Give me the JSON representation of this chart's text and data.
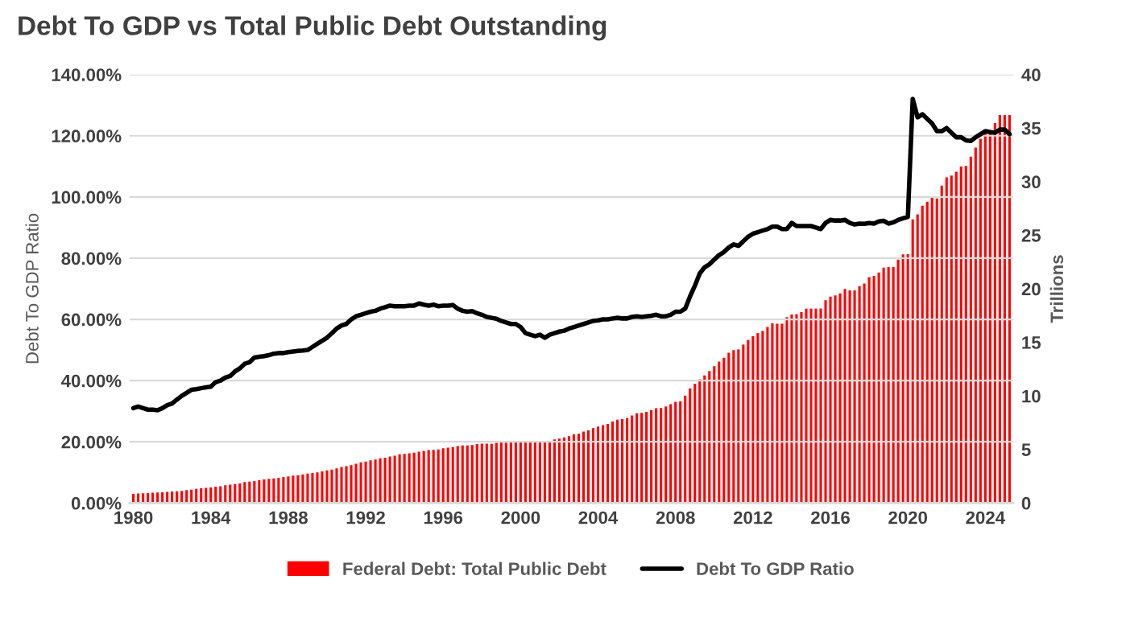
{
  "chart_data": {
    "type": "bar",
    "title": "Debt To GDP vs Total Public Debt Outstanding",
    "ylabel": "Debt To GDP Ratio",
    "y2label": "Trillions",
    "x": [
      1980,
      1980.25,
      1980.5,
      1980.75,
      1981,
      1981.25,
      1981.5,
      1981.75,
      1982,
      1982.25,
      1982.5,
      1982.75,
      1983,
      1983.25,
      1983.5,
      1983.75,
      1984,
      1984.25,
      1984.5,
      1984.75,
      1985,
      1985.25,
      1985.5,
      1985.75,
      1986,
      1986.25,
      1986.5,
      1986.75,
      1987,
      1987.25,
      1987.5,
      1987.75,
      1988,
      1988.25,
      1988.5,
      1988.75,
      1989,
      1989.25,
      1989.5,
      1989.75,
      1990,
      1990.25,
      1990.5,
      1990.75,
      1991,
      1991.25,
      1991.5,
      1991.75,
      1992,
      1992.25,
      1992.5,
      1992.75,
      1993,
      1993.25,
      1993.5,
      1993.75,
      1994,
      1994.25,
      1994.5,
      1994.75,
      1995,
      1995.25,
      1995.5,
      1995.75,
      1996,
      1996.25,
      1996.5,
      1996.75,
      1997,
      1997.25,
      1997.5,
      1997.75,
      1998,
      1998.25,
      1998.5,
      1998.75,
      1999,
      1999.25,
      1999.5,
      1999.75,
      2000,
      2000.25,
      2000.5,
      2000.75,
      2001,
      2001.25,
      2001.5,
      2001.75,
      2002,
      2002.25,
      2002.5,
      2002.75,
      2003,
      2003.25,
      2003.5,
      2003.75,
      2004,
      2004.25,
      2004.5,
      2004.75,
      2005,
      2005.25,
      2005.5,
      2005.75,
      2006,
      2006.25,
      2006.5,
      2006.75,
      2007,
      2007.25,
      2007.5,
      2007.75,
      2008,
      2008.25,
      2008.5,
      2008.75,
      2009,
      2009.25,
      2009.5,
      2009.75,
      2010,
      2010.25,
      2010.5,
      2010.75,
      2011,
      2011.25,
      2011.5,
      2011.75,
      2012,
      2012.25,
      2012.5,
      2012.75,
      2013,
      2013.25,
      2013.5,
      2013.75,
      2014,
      2014.25,
      2014.5,
      2014.75,
      2015,
      2015.25,
      2015.5,
      2015.75,
      2016,
      2016.25,
      2016.5,
      2016.75,
      2017,
      2017.25,
      2017.5,
      2017.75,
      2018,
      2018.25,
      2018.5,
      2018.75,
      2019,
      2019.25,
      2019.5,
      2019.75,
      2020,
      2020.25,
      2020.5,
      2020.75,
      2021,
      2021.25,
      2021.5,
      2021.75,
      2022,
      2022.25,
      2022.5,
      2022.75,
      2023,
      2023.25,
      2023.5,
      2023.75,
      2024,
      2024.25,
      2024.5,
      2024.75,
      2025,
      2025.25
    ],
    "xlim": [
      1979.8,
      2025.45
    ],
    "xticks": [
      1980,
      1984,
      1988,
      1992,
      1996,
      2000,
      2004,
      2008,
      2012,
      2016,
      2020,
      2024
    ],
    "ylim": [
      0,
      140
    ],
    "yticks": [
      {
        "value": 0,
        "label": "0.00%"
      },
      {
        "value": 20,
        "label": "20.00%"
      },
      {
        "value": 40,
        "label": "40.00%"
      },
      {
        "value": 60,
        "label": "60.00%"
      },
      {
        "value": 80,
        "label": "80.00%"
      },
      {
        "value": 100,
        "label": "100.00%"
      },
      {
        "value": 120,
        "label": "120.00%"
      },
      {
        "value": 140,
        "label": "140.00%"
      }
    ],
    "y2lim": [
      0,
      40
    ],
    "y2ticks": [
      0,
      5,
      10,
      15,
      20,
      25,
      30,
      35,
      40
    ],
    "grid": "y",
    "legend": "bottom",
    "series": [
      {
        "name": "Federal Debt: Total Public Debt",
        "axis": "y2",
        "color": "#ff0000",
        "values": [
          0.85,
          0.88,
          0.9,
          0.93,
          0.96,
          0.98,
          1.0,
          1.03,
          1.07,
          1.1,
          1.14,
          1.2,
          1.25,
          1.32,
          1.38,
          1.41,
          1.46,
          1.52,
          1.57,
          1.66,
          1.71,
          1.77,
          1.82,
          1.95,
          1.99,
          2.06,
          2.13,
          2.21,
          2.25,
          2.3,
          2.35,
          2.43,
          2.49,
          2.55,
          2.6,
          2.68,
          2.74,
          2.8,
          2.86,
          2.95,
          3.05,
          3.13,
          3.23,
          3.36,
          3.44,
          3.54,
          3.66,
          3.8,
          3.88,
          3.98,
          4.06,
          4.18,
          4.23,
          4.35,
          4.41,
          4.54,
          4.58,
          4.64,
          4.69,
          4.8,
          4.86,
          4.95,
          4.97,
          4.99,
          5.12,
          5.16,
          5.22,
          5.32,
          5.38,
          5.38,
          5.41,
          5.5,
          5.54,
          5.55,
          5.53,
          5.61,
          5.65,
          5.64,
          5.66,
          5.77,
          5.77,
          5.69,
          5.67,
          5.66,
          5.77,
          5.73,
          5.81,
          5.94,
          6.01,
          6.13,
          6.23,
          6.41,
          6.46,
          6.67,
          6.78,
          6.99,
          7.13,
          7.27,
          7.38,
          7.6,
          7.78,
          7.84,
          7.93,
          8.17,
          8.37,
          8.42,
          8.51,
          8.68,
          8.85,
          8.87,
          9.01,
          9.23,
          9.44,
          9.49,
          10.02,
          10.7,
          11.13,
          11.55,
          11.91,
          12.31,
          12.77,
          13.2,
          13.56,
          14.03,
          14.27,
          14.34,
          14.79,
          15.22,
          15.58,
          15.86,
          16.07,
          16.43,
          16.77,
          16.74,
          16.74,
          17.35,
          17.6,
          17.63,
          17.82,
          18.14,
          18.15,
          18.15,
          18.15,
          18.92,
          19.26,
          19.38,
          19.57,
          19.98,
          19.85,
          19.84,
          20.24,
          20.49,
          21.09,
          21.2,
          21.52,
          21.97,
          22.03,
          22.02,
          22.72,
          23.2,
          23.22,
          26.48,
          26.95,
          27.75,
          28.13,
          28.53,
          28.43,
          29.62,
          30.4,
          30.57,
          30.93,
          31.42,
          31.46,
          32.33,
          33.17,
          34.0,
          34.59,
          34.83,
          35.46,
          36.22,
          36.22,
          36.21
        ]
      },
      {
        "name": "Debt To GDP Ratio",
        "type": "line",
        "color": "#000000",
        "values": [
          31,
          31.5,
          31,
          30.5,
          30.5,
          30.3,
          31,
          32,
          32.5,
          33.8,
          35,
          36,
          37,
          37.2,
          37.5,
          37.8,
          38,
          39.5,
          40,
          41,
          41.5,
          43,
          44,
          45.5,
          46,
          47.5,
          47.8,
          48,
          48.3,
          48.8,
          49,
          49,
          49.3,
          49.5,
          49.7,
          49.8,
          50,
          51,
          52,
          53,
          54,
          55.5,
          57,
          58,
          58.5,
          60,
          61,
          61.5,
          62,
          62.5,
          62.8,
          63.5,
          64,
          64.5,
          64.3,
          64.3,
          64.3,
          64.5,
          64.5,
          65.2,
          64.8,
          64.5,
          64.8,
          64.3,
          64.5,
          64.5,
          64.7,
          63.5,
          62.8,
          62.5,
          62.7,
          62,
          61.5,
          60.8,
          60.5,
          60.2,
          59.5,
          59,
          58.5,
          58.5,
          57.5,
          55.5,
          55,
          54.5,
          55,
          54,
          55,
          55.5,
          56,
          56.3,
          57,
          57.5,
          58,
          58.5,
          59,
          59.5,
          59.7,
          60,
          60,
          60.3,
          60.5,
          60.3,
          60.3,
          60.8,
          61,
          60.8,
          61,
          61.2,
          61.5,
          61,
          61,
          61.5,
          62.5,
          62.5,
          63.5,
          67.5,
          71,
          75,
          77,
          78,
          79.5,
          81,
          82,
          83.5,
          84.5,
          84,
          85.5,
          87,
          88,
          88.5,
          89,
          89.5,
          90.3,
          90.3,
          89.5,
          89.5,
          91.5,
          90.5,
          90.5,
          90.5,
          90.5,
          90,
          89.5,
          91.5,
          92.5,
          92.3,
          92.3,
          92.5,
          91.5,
          91,
          91.3,
          91.2,
          91.5,
          91.3,
          92,
          92.2,
          91.3,
          91.7,
          92.5,
          93,
          93.5,
          132,
          126,
          127,
          125.5,
          124,
          121.5,
          121.5,
          122.5,
          121,
          119.5,
          119.5,
          118.5,
          118.3,
          119.5,
          120.5,
          121.5,
          121.2,
          121,
          122,
          122,
          120.5
        ]
      }
    ]
  }
}
